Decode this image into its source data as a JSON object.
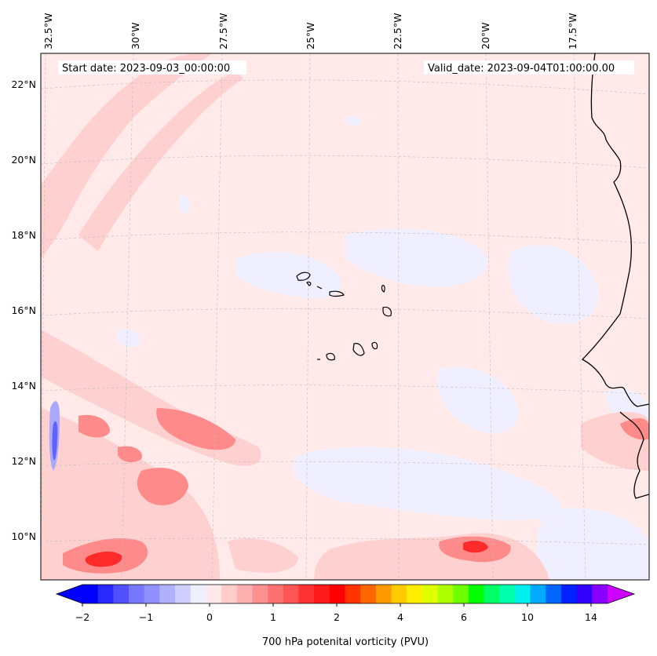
{
  "map": {
    "start_date_label": "Start date: 2023-09-03_00:00:00",
    "valid_date_label": "Valid_date: 2023-09-04T01:00:00.00",
    "longitude_labels": [
      "32.5°W",
      "30°W",
      "27.5°W",
      "25°W",
      "22.5°W",
      "20°W",
      "17.5°W"
    ],
    "latitude_labels": [
      "22°N",
      "20°N",
      "18°N",
      "16°N",
      "14°N",
      "12°N",
      "10°N"
    ],
    "extent": {
      "lon_min": -32.5,
      "lon_max": -15.5,
      "lat_min": 8.9,
      "lat_max": 22.8
    }
  },
  "colorbar": {
    "label": "700 hPa potenital vorticity (PVU)",
    "tick_labels": [
      "−2",
      "−1",
      "0",
      "1",
      "2",
      "4",
      "6",
      "10",
      "14"
    ],
    "colors": [
      "#0000ff",
      "#2a2aff",
      "#5050ff",
      "#7676ff",
      "#9090ff",
      "#b0b0ff",
      "#d0d0ff",
      "#eeeeff",
      "#ffe8e8",
      "#ffcccc",
      "#ffb0b0",
      "#ff9090",
      "#ff7070",
      "#ff5555",
      "#ff3333",
      "#ff1a1a",
      "#ff0000",
      "#ff3300",
      "#ff6600",
      "#ff9900",
      "#ffcc00",
      "#ffee00",
      "#e0ff00",
      "#b0ff00",
      "#70ff00",
      "#00ff00",
      "#00ff66",
      "#00ffaa",
      "#00eeee",
      "#00aaff",
      "#0066ff",
      "#0022ff",
      "#3300ff",
      "#8800ff"
    ],
    "under_color": "#0000ff",
    "over_color": "#cc00ff"
  },
  "colors": {
    "background_field": "#ffe9e9",
    "weak_negative": "#efefff",
    "moderate_positive": "#ffd0d0",
    "strong_positive": "#ff6f6f",
    "peak_positive": "#ff2020",
    "negative_blue": "#8080ff",
    "coastline": "#000000"
  }
}
